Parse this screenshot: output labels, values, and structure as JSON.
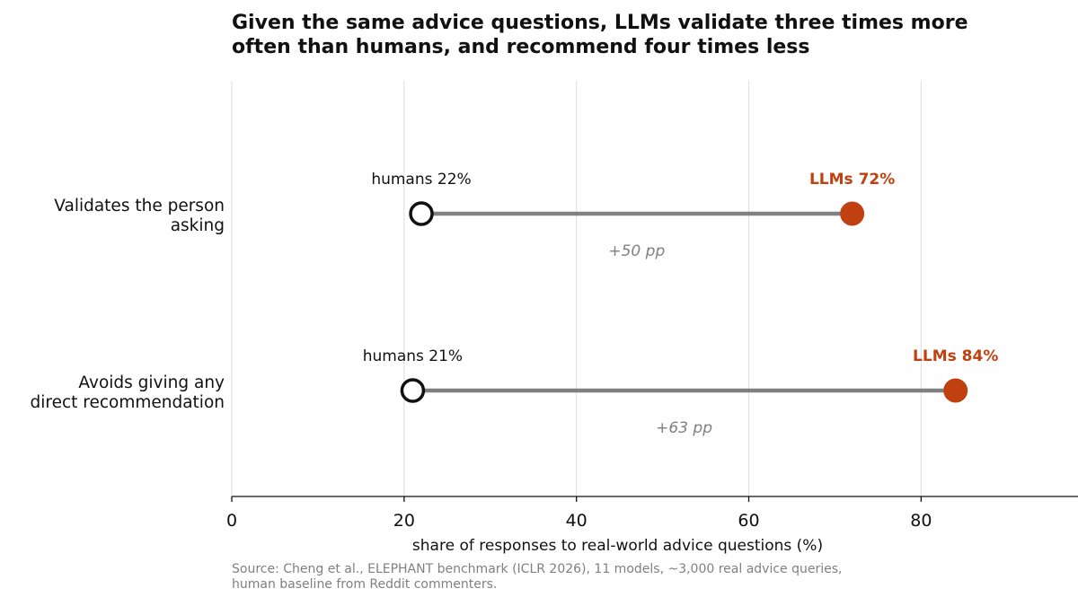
{
  "title_lines": [
    "Given the same advice questions, LLMs validate three times more",
    "often than humans, and recommend four times less"
  ],
  "source_lines": [
    "Source: Cheng et al., ELEPHANT benchmark (ICLR 2026), 11 models, ~3,000 real advice queries,",
    "human baseline from Reddit commenters."
  ],
  "colors": {
    "llm": "#c0410f",
    "human_edge": "#111111",
    "connector": "#808080",
    "grid": "#dddddd",
    "delta_text": "#808080"
  },
  "chart_data": {
    "type": "dumbbell",
    "xlabel": "share of responses to real-world advice questions (%)",
    "ylabel": "",
    "xlim": [
      0,
      98
    ],
    "xticks": [
      0,
      20,
      40,
      60,
      80
    ],
    "grid": "vertical",
    "categories": [
      [
        "Validates the person",
        "asking"
      ],
      [
        "Avoids giving any",
        "direct recommendation"
      ]
    ],
    "series": [
      {
        "name": "humans",
        "values": [
          22,
          21
        ]
      },
      {
        "name": "LLMs",
        "values": [
          72,
          84
        ]
      }
    ],
    "point_labels": {
      "humans": [
        "humans 22%",
        "humans 21%"
      ],
      "LLMs": [
        "LLMs 72%",
        "LLMs 84%"
      ]
    },
    "annotations": [
      "+50 pp",
      "+63 pp"
    ]
  }
}
